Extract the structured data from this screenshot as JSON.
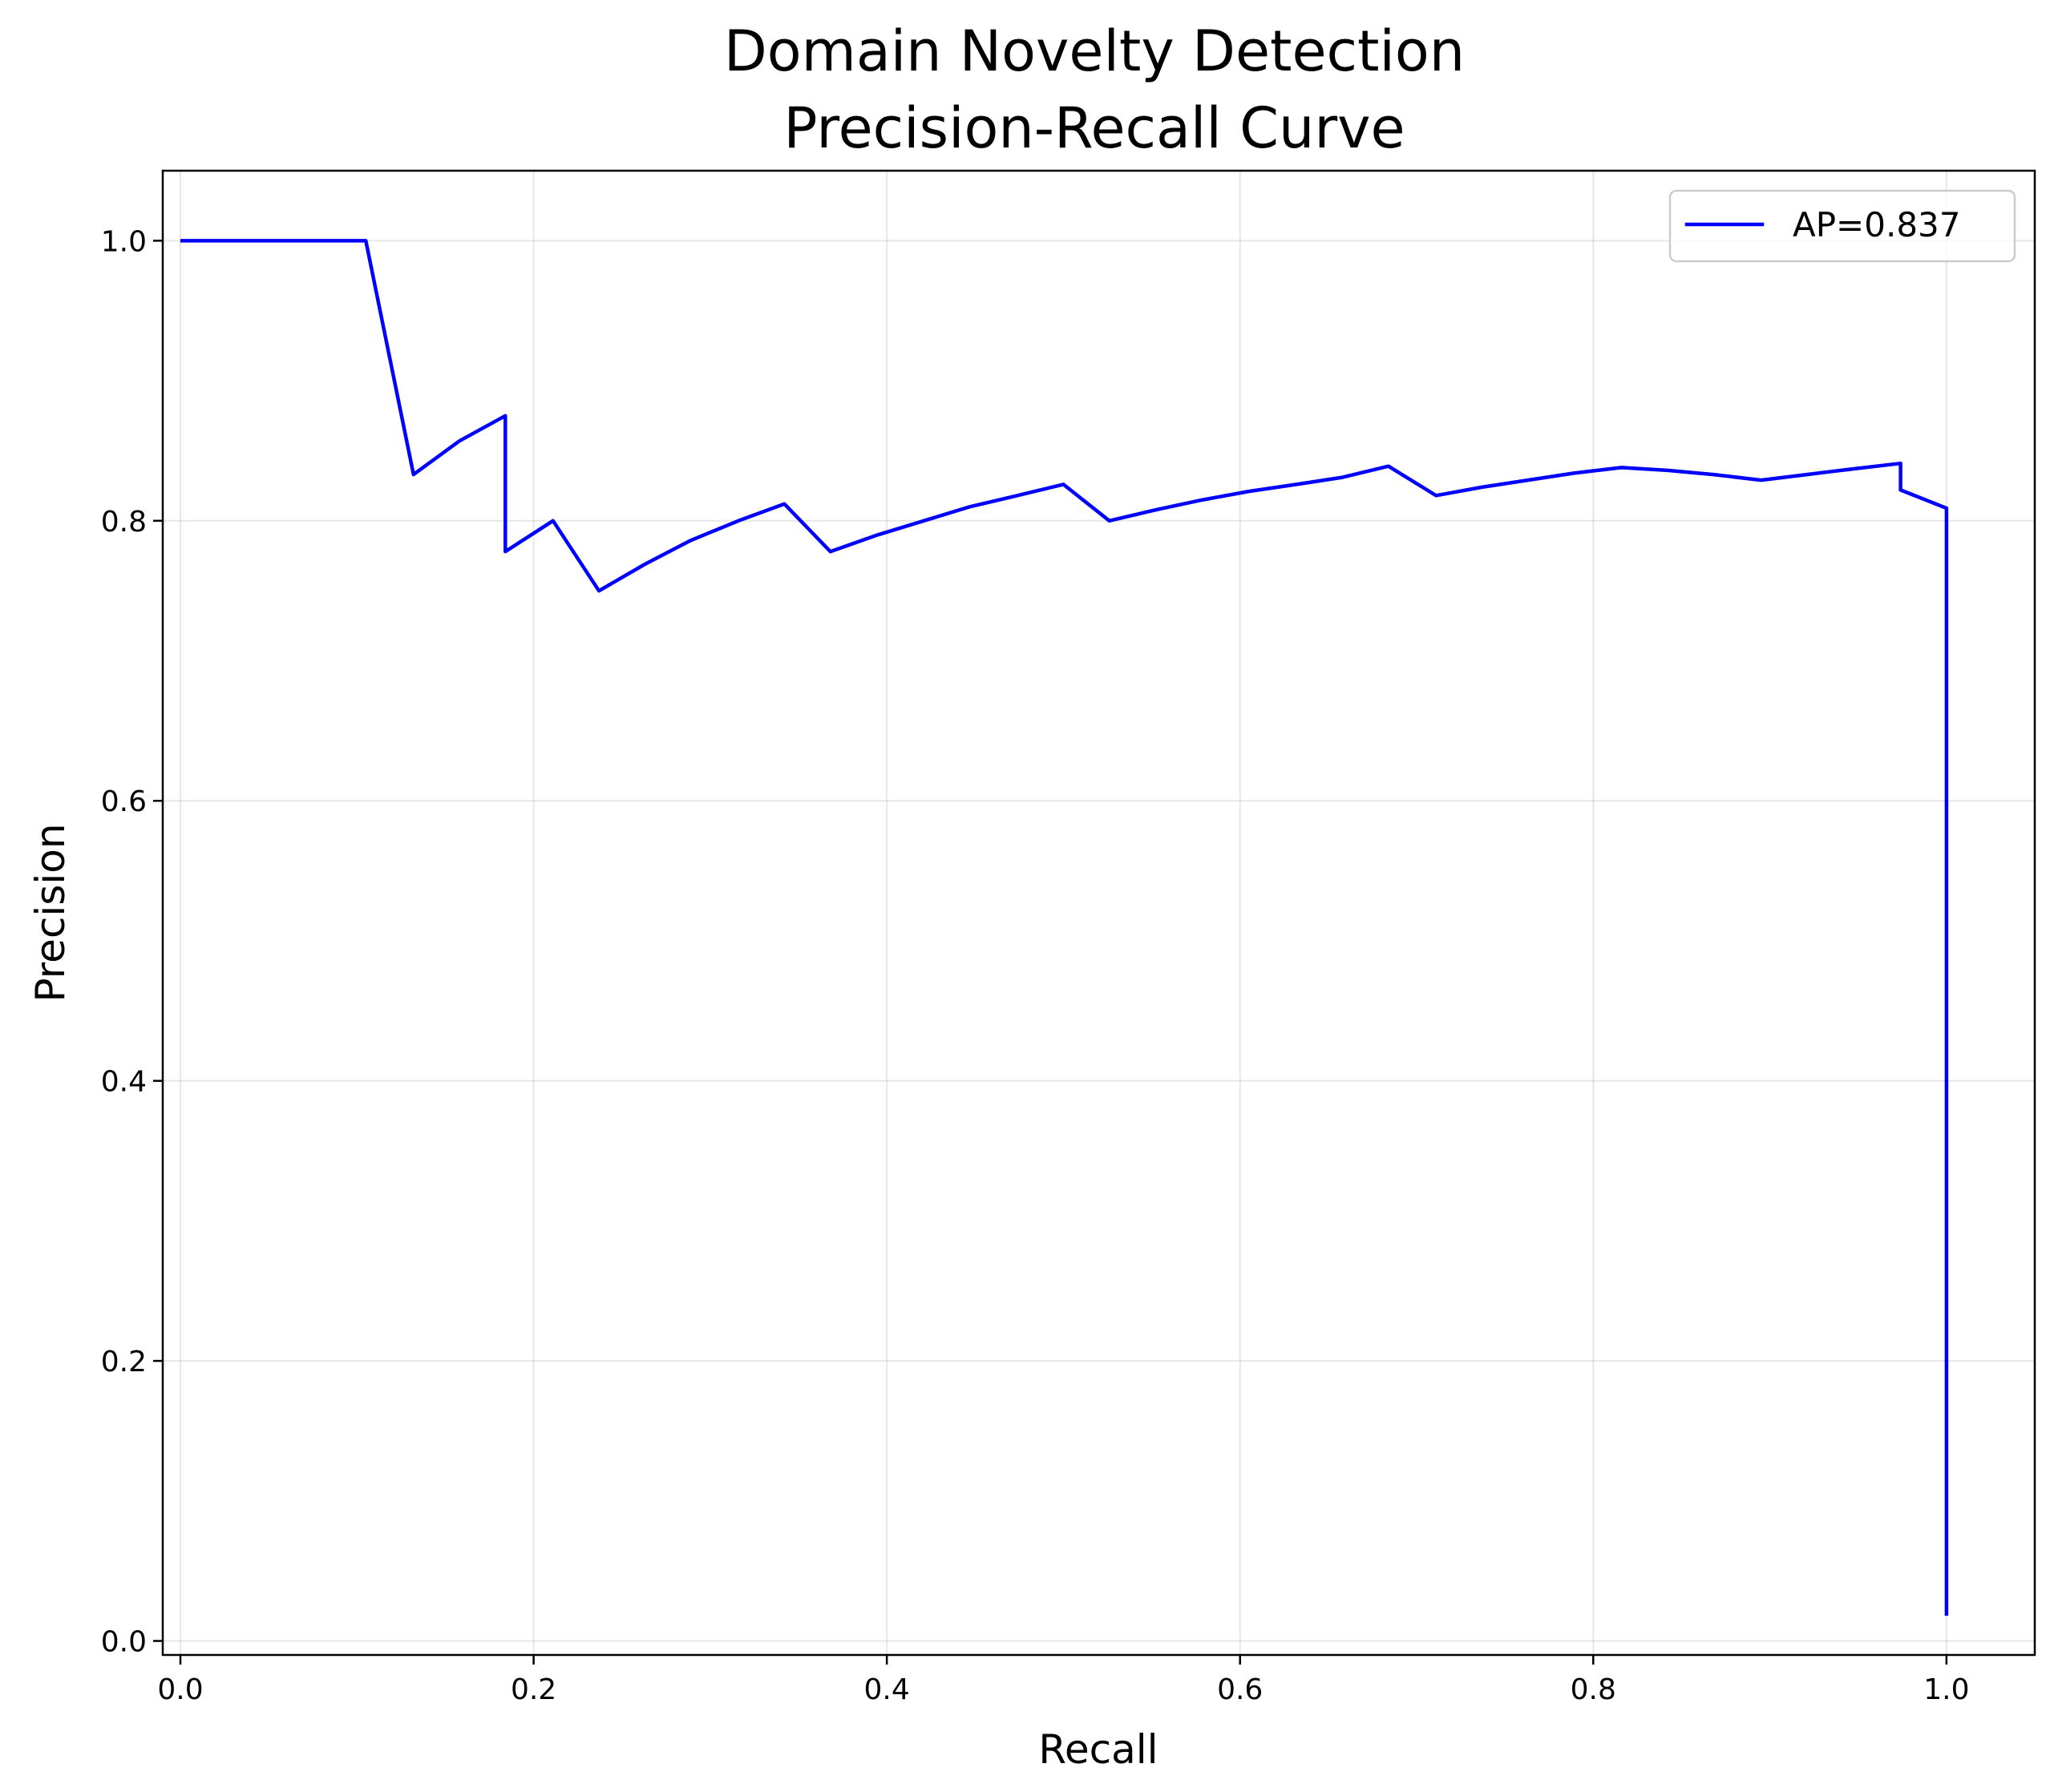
{
  "chart_data": {
    "type": "line",
    "title": "Domain Novelty Detection\nPrecision-Recall Curve",
    "title_lines": [
      "Domain Novelty Detection",
      "Precision-Recall Curve"
    ],
    "xlabel": "Recall",
    "ylabel": "Precision",
    "xlim": [
      -0.01,
      1.05
    ],
    "ylim": [
      -0.01,
      1.05
    ],
    "xticks": [
      0.0,
      0.2,
      0.4,
      0.6,
      0.8,
      1.0
    ],
    "xtick_labels": [
      "0.0",
      "0.2",
      "0.4",
      "0.6",
      "0.8",
      "1.0"
    ],
    "yticks": [
      0.0,
      0.2,
      0.4,
      0.6,
      0.8,
      1.0
    ],
    "ytick_labels": [
      "0.0",
      "0.2",
      "0.4",
      "0.6",
      "0.8",
      "1.0"
    ],
    "grid": true,
    "legend_position": "top-right",
    "series": [
      {
        "name": "AP=0.837",
        "color": "#0000ff",
        "x": [
          0.0,
          0.105,
          0.132,
          0.158,
          0.184,
          0.184,
          0.211,
          0.237,
          0.263,
          0.289,
          0.316,
          0.342,
          0.368,
          0.395,
          0.421,
          0.447,
          0.474,
          0.5,
          0.526,
          0.553,
          0.579,
          0.605,
          0.632,
          0.658,
          0.684,
          0.711,
          0.737,
          0.763,
          0.789,
          0.816,
          0.842,
          0.868,
          0.895,
          0.921,
          0.947,
          0.974,
          0.974,
          1.0,
          1.0
        ],
        "y": [
          1.0,
          1.0,
          0.833,
          0.857,
          0.875,
          0.778,
          0.8,
          0.75,
          0.769,
          0.786,
          0.8,
          0.812,
          0.778,
          0.79,
          0.8,
          0.81,
          0.818,
          0.826,
          0.8,
          0.808,
          0.815,
          0.821,
          0.826,
          0.831,
          0.839,
          0.818,
          0.824,
          0.829,
          0.834,
          0.838,
          0.836,
          0.833,
          0.829,
          0.833,
          0.837,
          0.841,
          0.822,
          0.809,
          0.018
        ]
      }
    ]
  }
}
